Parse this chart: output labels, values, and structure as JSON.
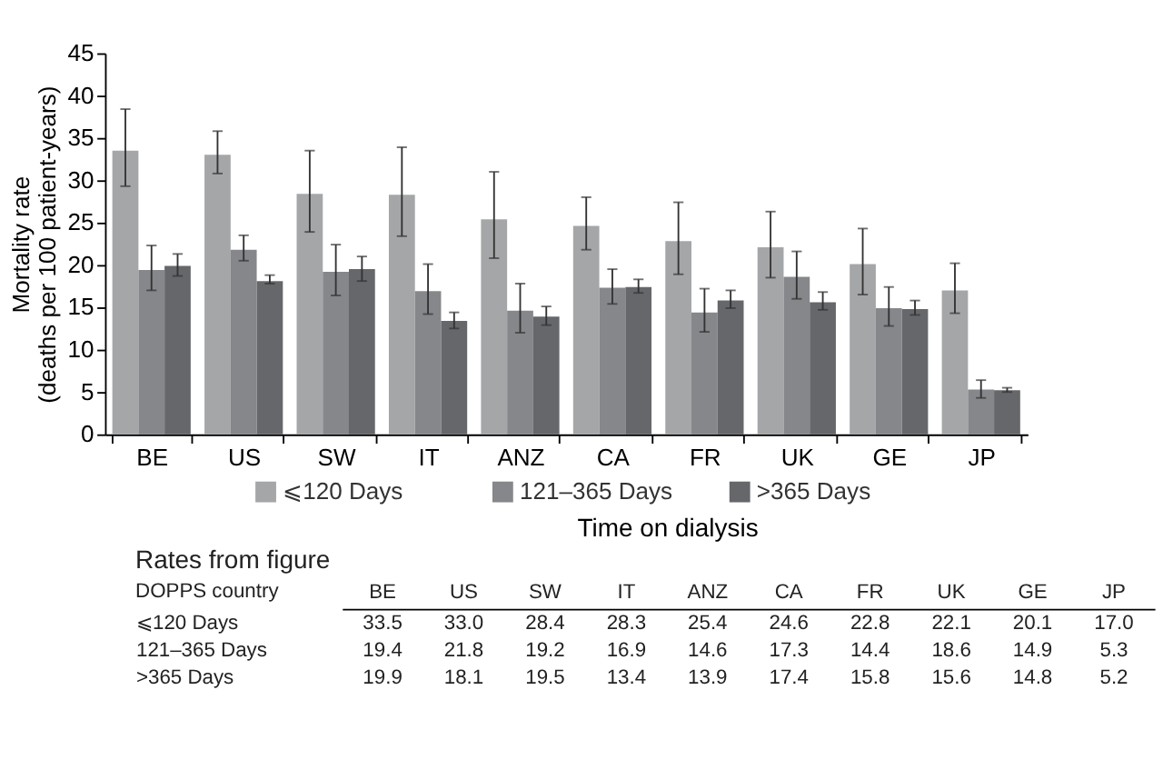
{
  "chart_data": [
    {
      "type": "bar",
      "ylabel": "Mortality rate\n(deaths per 100 patient-years)",
      "xlabel": "Time on dialysis",
      "categories": [
        "BE",
        "US",
        "SW",
        "IT",
        "ANZ",
        "CA",
        "FR",
        "UK",
        "GE",
        "JP"
      ],
      "series": [
        {
          "name": "⩽120 Days",
          "color": "#a4a6a8",
          "values": [
            33.5,
            33.0,
            28.4,
            28.3,
            25.4,
            24.6,
            22.8,
            22.1,
            20.1,
            17.0
          ],
          "errors": [
            [
              29.3,
              38.4
            ],
            [
              30.8,
              35.8
            ],
            [
              23.9,
              33.5
            ],
            [
              23.4,
              33.9
            ],
            [
              20.8,
              31.0
            ],
            [
              21.8,
              28.0
            ],
            [
              18.9,
              27.4
            ],
            [
              18.5,
              26.3
            ],
            [
              16.5,
              24.3
            ],
            [
              14.3,
              20.2
            ]
          ]
        },
        {
          "name": "121–365 Days",
          "color": "#85878a",
          "values": [
            19.4,
            21.8,
            19.2,
            16.9,
            14.6,
            17.3,
            14.4,
            18.6,
            14.9,
            5.3
          ],
          "errors": [
            [
              17.0,
              22.3
            ],
            [
              20.5,
              23.5
            ],
            [
              16.4,
              22.4
            ],
            [
              14.2,
              20.1
            ],
            [
              12.0,
              17.8
            ],
            [
              15.4,
              19.5
            ],
            [
              12.1,
              17.2
            ],
            [
              16.0,
              21.6
            ],
            [
              12.8,
              17.4
            ],
            [
              4.3,
              6.4
            ]
          ]
        },
        {
          "name": ">365 Days",
          "color": "#65676a",
          "values": [
            19.9,
            18.1,
            19.5,
            13.4,
            13.9,
            17.4,
            15.8,
            15.6,
            14.8,
            5.2
          ],
          "errors": [
            [
              18.7,
              21.3
            ],
            [
              17.8,
              18.8
            ],
            [
              18.1,
              21.0
            ],
            [
              12.5,
              14.4
            ],
            [
              12.9,
              15.1
            ],
            [
              16.7,
              18.3
            ],
            [
              14.9,
              17.0
            ],
            [
              14.7,
              16.8
            ],
            [
              14.1,
              15.8
            ],
            [
              5.0,
              5.5
            ]
          ]
        }
      ],
      "ylim": [
        0,
        45
      ],
      "yticks": [
        0,
        5,
        10,
        15,
        20,
        25,
        30,
        35,
        40,
        45
      ],
      "grid": false,
      "legend": "bottom"
    },
    {
      "type": "heatmap",
      "title": "Rates from figure",
      "data_labels": true,
      "annotations": [
        "DOPPS country"
      ],
      "categories": [
        "BE",
        "US",
        "SW",
        "IT",
        "ANZ",
        "CA",
        "FR",
        "UK",
        "GE",
        "JP"
      ],
      "y_categories": [
        "⩽120 Days",
        "121–365 Days",
        ">365 Days"
      ],
      "cells": [
        [
          33.5,
          33.0,
          28.4,
          28.3,
          25.4,
          24.6,
          22.8,
          22.1,
          20.1,
          17.0
        ],
        [
          19.4,
          21.8,
          19.2,
          16.9,
          14.6,
          17.3,
          14.4,
          18.6,
          14.9,
          5.3
        ],
        [
          19.9,
          18.1,
          19.5,
          13.4,
          13.9,
          17.4,
          15.8,
          15.6,
          14.8,
          5.2
        ]
      ],
      "cell_labels": [
        [
          "33.5",
          "33.0",
          "28.4",
          "28.3",
          "25.4",
          "24.6",
          "22.8",
          "22.1",
          "20.1",
          "17.0"
        ],
        [
          "19.4",
          "21.8",
          "19.2",
          "16.9",
          "14.6",
          "17.3",
          "14.4",
          "18.6",
          "14.9",
          "5.3"
        ],
        [
          "19.9",
          "18.1",
          "19.5",
          "13.4",
          "13.9",
          "17.4",
          "15.8",
          "15.6",
          "14.8",
          "5.2"
        ]
      ]
    }
  ]
}
